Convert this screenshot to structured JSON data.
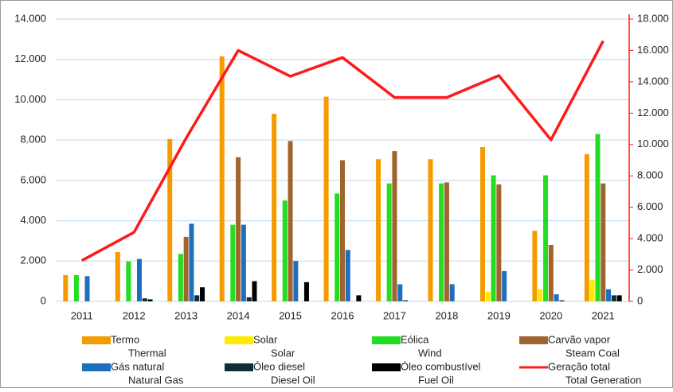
{
  "chart_data": {
    "type": "bar",
    "categories": [
      "2011",
      "2012",
      "2013",
      "2014",
      "2015",
      "2016",
      "2017",
      "2018",
      "2019",
      "2020",
      "2021"
    ],
    "series": [
      {
        "name": "Termo",
        "name_en": "Thermal",
        "color": "#f59b00",
        "values": [
          1300,
          2450,
          8050,
          12150,
          9300,
          10150,
          7050,
          7050,
          7650,
          3500,
          7300
        ]
      },
      {
        "name": "Solar",
        "name_en": "Solar",
        "color": "#ffeb00",
        "values": [
          0,
          0,
          0,
          0,
          0,
          0,
          0,
          0,
          480,
          600,
          1050
        ]
      },
      {
        "name": "Eólica",
        "name_en": "Wind",
        "color": "#22dd22",
        "values": [
          1300,
          1980,
          2350,
          3800,
          5000,
          5350,
          5850,
          5850,
          6250,
          6250,
          8300
        ]
      },
      {
        "name": "Carvão vapor",
        "name_en": "Steam Coal",
        "color": "#a0642e",
        "values": [
          0,
          0,
          3200,
          7150,
          7950,
          7000,
          7450,
          5900,
          5800,
          2800,
          5850
        ]
      },
      {
        "name": "Gás natural",
        "name_en": "Natural Gas",
        "color": "#1f6fc0",
        "values": [
          1250,
          2100,
          3850,
          3800,
          2000,
          2550,
          850,
          850,
          1500,
          350,
          600
        ]
      },
      {
        "name": "Óleo diesel",
        "name_en": "Diesel Oil",
        "color": "#0e2f3a",
        "values": [
          0,
          150,
          300,
          200,
          0,
          0,
          50,
          0,
          0,
          50,
          300
        ]
      },
      {
        "name": "Óleo combustível",
        "name_en": "Fuel Oil",
        "color": "#000000",
        "values": [
          0,
          100,
          700,
          1000,
          950,
          300,
          0,
          0,
          0,
          0,
          300
        ]
      },
      {
        "name": "Geração total",
        "name_en": "Total Generation",
        "color": "#ff1a1a",
        "type": "line",
        "axis": "y2",
        "values": [
          2600,
          4400,
          10400,
          16000,
          14350,
          15550,
          13000,
          13000,
          14400,
          10300,
          16600
        ]
      }
    ],
    "ylim": [
      0,
      14000
    ],
    "yticks": [
      {
        "value": 0,
        "label": "0"
      },
      {
        "value": 2000,
        "label": "2.000"
      },
      {
        "value": 4000,
        "label": "4.000"
      },
      {
        "value": 6000,
        "label": "6.000"
      },
      {
        "value": 8000,
        "label": "8.000"
      },
      {
        "value": 10000,
        "label": "10.000"
      },
      {
        "value": 12000,
        "label": "12.000"
      },
      {
        "value": 14000,
        "label": "14.000"
      }
    ],
    "y2lim": [
      0,
      18000
    ],
    "y2ticks": [
      {
        "value": 0,
        "label": "0"
      },
      {
        "value": 2000,
        "label": "2.000"
      },
      {
        "value": 4000,
        "label": "4.000"
      },
      {
        "value": 6000,
        "label": "6.000"
      },
      {
        "value": 8000,
        "label": "8.000"
      },
      {
        "value": 10000,
        "label": "10.000"
      },
      {
        "value": 12000,
        "label": "12.000"
      },
      {
        "value": 14000,
        "label": "14.000"
      },
      {
        "value": 16000,
        "label": "16.000"
      },
      {
        "value": 18000,
        "label": "18.000"
      }
    ],
    "grid": true
  }
}
